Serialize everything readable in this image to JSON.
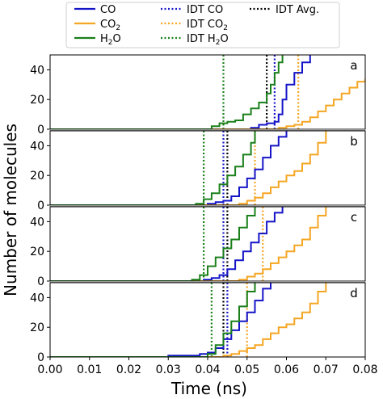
{
  "chart_data": {
    "type": "line",
    "xlabel": "Time (ns)",
    "ylabel": "Number of molecules",
    "xlim": [
      0.0,
      0.08
    ],
    "ylim": [
      0,
      50
    ],
    "x_ticks": [
      "0.00",
      "0.01",
      "0.02",
      "0.03",
      "0.04",
      "0.05",
      "0.06",
      "0.07",
      "0.08"
    ],
    "y_ticks": [
      "0",
      "20",
      "40"
    ],
    "legend": {
      "placement": "top",
      "entries": [
        {
          "label": "CO",
          "color": "#1515c8",
          "style": "solid"
        },
        {
          "label": "CO2",
          "color": "#f5a623",
          "style": "solid"
        },
        {
          "label": "H2O",
          "color": "#1a801a",
          "style": "solid"
        },
        {
          "label": "IDT CO",
          "color": "#1515c8",
          "style": "dotted"
        },
        {
          "label": "IDT CO2",
          "color": "#f5a623",
          "style": "dotted"
        },
        {
          "label": "IDT H2O",
          "color": "#1a801a",
          "style": "dotted"
        },
        {
          "label": "IDT Avg.",
          "color": "#000000",
          "style": "dotted"
        }
      ]
    },
    "panels": [
      {
        "label": "a",
        "series": [
          {
            "name": "CO",
            "x": [
              0.0,
              0.05,
              0.051,
              0.053,
              0.055,
              0.056,
              0.057,
              0.058,
              0.059,
              0.06,
              0.062,
              0.064,
              0.066
            ],
            "y": [
              0,
              0,
              1,
              3,
              4,
              4,
              5,
              10,
              20,
              30,
              38,
              45,
              50
            ]
          },
          {
            "name": "CO2",
            "x": [
              0.0,
              0.056,
              0.058,
              0.06,
              0.062,
              0.063,
              0.064,
              0.066,
              0.068,
              0.07,
              0.072,
              0.074,
              0.076,
              0.078,
              0.08
            ],
            "y": [
              0,
              0,
              1,
              2,
              3,
              3,
              5,
              8,
              12,
              16,
              20,
              24,
              28,
              32,
              34
            ]
          },
          {
            "name": "H2O",
            "x": [
              0.0,
              0.04,
              0.041,
              0.043,
              0.045,
              0.047,
              0.049,
              0.051,
              0.053,
              0.055,
              0.056,
              0.057,
              0.058,
              0.059
            ],
            "y": [
              0,
              0,
              2,
              4,
              5,
              6,
              10,
              14,
              18,
              24,
              30,
              38,
              45,
              50
            ]
          }
        ],
        "idt": {
          "CO": 0.057,
          "CO2": 0.063,
          "H2O": 0.044,
          "Avg": 0.055
        }
      },
      {
        "label": "b",
        "series": [
          {
            "name": "CO",
            "x": [
              0.0,
              0.038,
              0.04,
              0.042,
              0.044,
              0.046,
              0.048,
              0.05,
              0.052,
              0.054,
              0.056,
              0.058,
              0.06
            ],
            "y": [
              0,
              0,
              1,
              2,
              3,
              6,
              12,
              18,
              24,
              32,
              40,
              46,
              50
            ]
          },
          {
            "name": "CO2",
            "x": [
              0.0,
              0.045,
              0.048,
              0.05,
              0.052,
              0.054,
              0.056,
              0.058,
              0.06,
              0.062,
              0.064,
              0.066,
              0.068,
              0.07
            ],
            "y": [
              0,
              0,
              1,
              3,
              5,
              8,
              12,
              16,
              20,
              23,
              28,
              34,
              42,
              50
            ]
          },
          {
            "name": "H2O",
            "x": [
              0.0,
              0.035,
              0.037,
              0.039,
              0.041,
              0.043,
              0.045,
              0.047,
              0.049,
              0.051,
              0.052
            ],
            "y": [
              0,
              0,
              1,
              4,
              8,
              14,
              20,
              26,
              34,
              42,
              50
            ]
          }
        ],
        "idt": {
          "CO": 0.044,
          "CO2": 0.052,
          "H2O": 0.039,
          "Avg": 0.045
        }
      },
      {
        "label": "c",
        "series": [
          {
            "name": "CO",
            "x": [
              0.0,
              0.037,
              0.039,
              0.041,
              0.043,
              0.045,
              0.047,
              0.049,
              0.051,
              0.053,
              0.055,
              0.057,
              0.059
            ],
            "y": [
              0,
              0,
              1,
              2,
              4,
              8,
              14,
              20,
              26,
              32,
              40,
              46,
              50
            ]
          },
          {
            "name": "CO2",
            "x": [
              0.0,
              0.046,
              0.048,
              0.05,
              0.052,
              0.054,
              0.056,
              0.058,
              0.06,
              0.062,
              0.064,
              0.066,
              0.068,
              0.07
            ],
            "y": [
              0,
              0,
              1,
              3,
              5,
              8,
              12,
              16,
              20,
              24,
              28,
              36,
              44,
              50
            ]
          },
          {
            "name": "H2O",
            "x": [
              0.0,
              0.034,
              0.036,
              0.038,
              0.04,
              0.042,
              0.044,
              0.046,
              0.048,
              0.05,
              0.052
            ],
            "y": [
              0,
              0,
              1,
              4,
              10,
              16,
              22,
              28,
              36,
              44,
              50
            ]
          }
        ],
        "idt": {
          "CO": 0.044,
          "CO2": 0.054,
          "H2O": 0.039,
          "Avg": 0.045
        }
      },
      {
        "label": "d",
        "series": [
          {
            "name": "CO",
            "x": [
              0.0,
              0.028,
              0.03,
              0.034,
              0.038,
              0.04,
              0.042,
              0.044,
              0.046,
              0.048,
              0.05,
              0.052,
              0.054,
              0.056
            ],
            "y": [
              0,
              0,
              1,
              1,
              2,
              3,
              6,
              12,
              18,
              24,
              30,
              38,
              46,
              50
            ]
          },
          {
            "name": "CO2",
            "x": [
              0.0,
              0.041,
              0.044,
              0.046,
              0.048,
              0.05,
              0.052,
              0.054,
              0.056,
              0.058,
              0.06,
              0.062,
              0.064,
              0.066,
              0.068,
              0.07
            ],
            "y": [
              0,
              0,
              1,
              2,
              4,
              6,
              8,
              12,
              16,
              20,
              22,
              26,
              30,
              36,
              44,
              50
            ]
          },
          {
            "name": "H2O",
            "x": [
              0.0,
              0.038,
              0.04,
              0.042,
              0.044,
              0.046,
              0.048,
              0.05,
              0.052
            ],
            "y": [
              0,
              0,
              2,
              8,
              16,
              24,
              34,
              44,
              50
            ]
          }
        ],
        "idt": {
          "CO": 0.045,
          "CO2": 0.05,
          "H2O": 0.041,
          "Avg": 0.044
        }
      }
    ]
  }
}
